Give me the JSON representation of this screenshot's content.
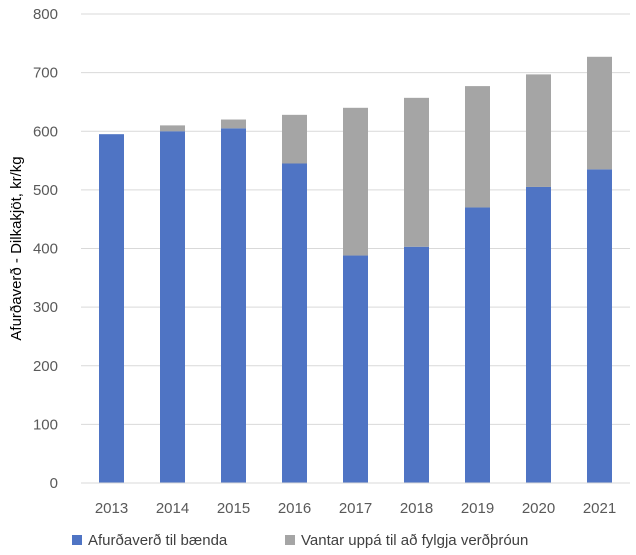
{
  "chart_data": {
    "type": "bar",
    "stacked": true,
    "title": "",
    "xlabel": "",
    "ylabel": "Afurðaverð - Dilkakjöt, kr/kg",
    "ylim": [
      0,
      800
    ],
    "yticks": [
      0,
      100,
      200,
      300,
      400,
      500,
      600,
      700,
      800
    ],
    "grid": true,
    "legend_position": "bottom",
    "categories": [
      "2013",
      "2014",
      "2015",
      "2016",
      "2017",
      "2018",
      "2019",
      "2020",
      "2021"
    ],
    "series": [
      {
        "name": "Afurðaverð til bænda",
        "color": "#4f74c4",
        "values": [
          595,
          600,
          605,
          545,
          388,
          403,
          470,
          505,
          535
        ]
      },
      {
        "name": "Vantar uppá til að fylgja verðþróun",
        "color": "#a5a5a5",
        "values": [
          0,
          10,
          15,
          83,
          252,
          254,
          207,
          192,
          192
        ]
      }
    ]
  }
}
